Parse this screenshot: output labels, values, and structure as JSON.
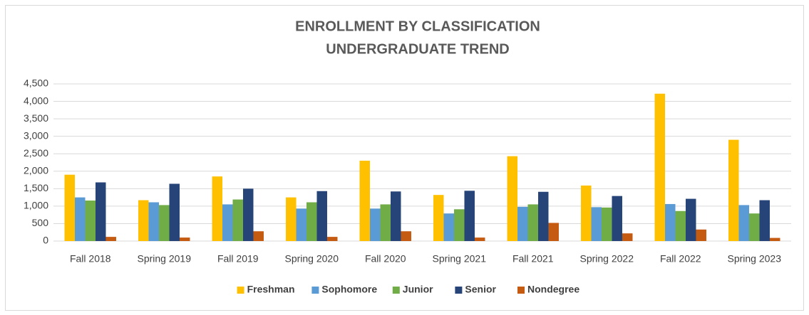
{
  "chart_data": {
    "type": "bar",
    "title": "ENROLLMENT BY CLASSIFICATION",
    "subtitle": "UNDERGRADUATE TREND",
    "categories": [
      "Fall 2018",
      "Spring 2019",
      "Fall 2019",
      "Spring 2020",
      "Fall 2020",
      "Spring 2021",
      "Fall 2021",
      "Spring 2022",
      "Fall 2022",
      "Spring 2023"
    ],
    "series": [
      {
        "name": "Freshman",
        "color": "#ffc000",
        "values": [
          1900,
          1170,
          1850,
          1250,
          2300,
          1320,
          2430,
          1590,
          4220,
          2900
        ]
      },
      {
        "name": "Sophomore",
        "color": "#5b9bd5",
        "values": [
          1250,
          1110,
          1050,
          930,
          930,
          790,
          980,
          970,
          1060,
          1030
        ]
      },
      {
        "name": "Junior",
        "color": "#70ad47",
        "values": [
          1160,
          1030,
          1190,
          1110,
          1050,
          910,
          1050,
          960,
          860,
          790
        ]
      },
      {
        "name": "Senior",
        "color": "#264478",
        "values": [
          1680,
          1640,
          1500,
          1430,
          1420,
          1440,
          1410,
          1290,
          1210,
          1170
        ]
      },
      {
        "name": "Nondegree",
        "color": "#c55a11",
        "values": [
          120,
          100,
          280,
          120,
          280,
          100,
          520,
          220,
          330,
          90
        ]
      }
    ],
    "ylim": [
      0,
      4500
    ],
    "yticks": [
      0,
      500,
      {
        "value": 1000,
        "label": "1,000"
      },
      {
        "value": 1500,
        "label": "1,500"
      },
      {
        "value": 2000,
        "label": "2,000"
      },
      {
        "value": 2500,
        "label": "2,500"
      },
      {
        "value": 3000,
        "label": "3,000"
      },
      {
        "value": 3500,
        "label": "3,500"
      },
      {
        "value": 4000,
        "label": "4,000"
      },
      {
        "value": 4500,
        "label": "4,500"
      }
    ],
    "grid": true,
    "legend": "bottom"
  }
}
